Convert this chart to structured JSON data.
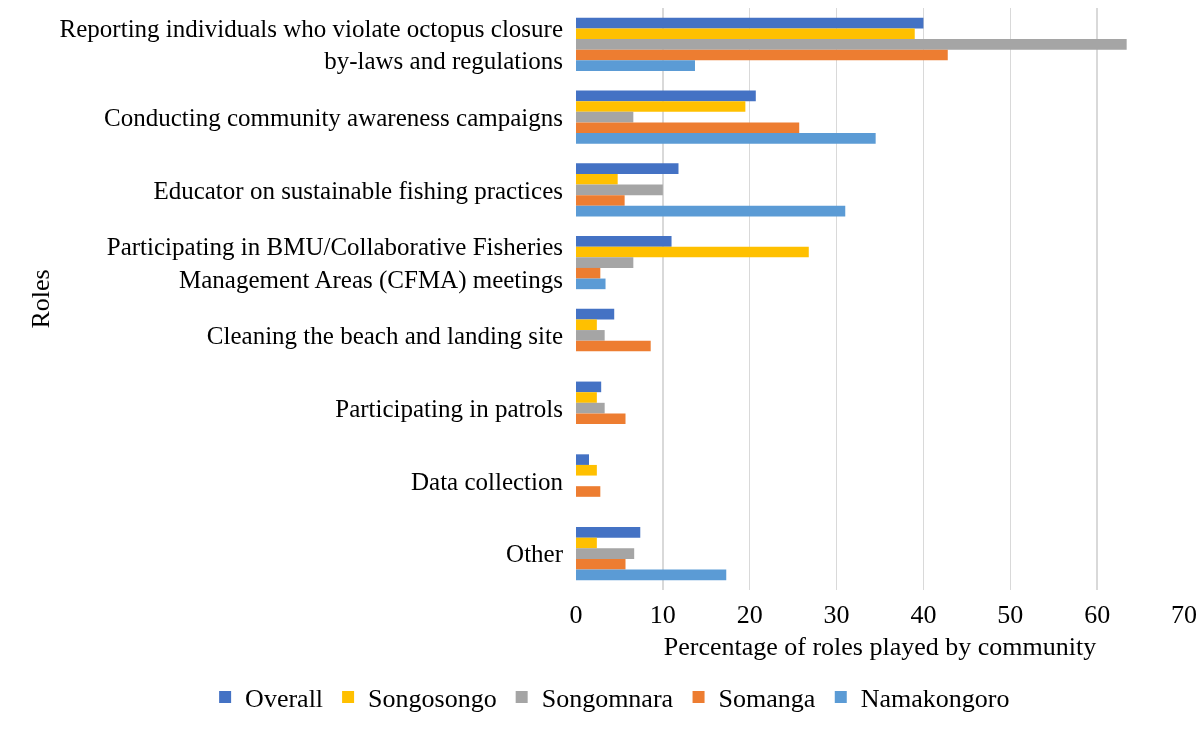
{
  "chart_data": {
    "type": "bar",
    "orientation": "horizontal",
    "categories": [
      "Reporting individuals who violate octopus closure by-laws and regulations",
      "Conducting community awareness campaigns",
      "Educator on sustainable fishing practices",
      "Participating in BMU/Collaborative Fisheries Management Areas (CFMA) meetings",
      "Cleaning the beach and landing site",
      "Participating in patrols",
      "Data collection",
      "Other"
    ],
    "series": [
      {
        "name": "Overall",
        "color": "#4472c4",
        "values": [
          40.0,
          20.7,
          11.8,
          11.0,
          4.4,
          2.9,
          1.5,
          7.4
        ]
      },
      {
        "name": "Songosongo",
        "color": "#ffc000",
        "values": [
          39.0,
          19.5,
          4.8,
          26.8,
          2.4,
          2.4,
          2.4,
          2.4
        ]
      },
      {
        "name": "Songomnara",
        "color": "#a5a5a5",
        "values": [
          63.4,
          6.6,
          10.0,
          6.6,
          3.3,
          3.3,
          null,
          6.7
        ]
      },
      {
        "name": "Somanga",
        "color": "#ed7d31",
        "values": [
          42.8,
          25.7,
          5.6,
          2.8,
          8.6,
          5.7,
          2.8,
          5.7
        ]
      },
      {
        "name": "Namakongoro",
        "color": "#5b9bd5",
        "values": [
          13.7,
          34.5,
          31.0,
          3.4,
          null,
          null,
          null,
          17.3
        ]
      }
    ],
    "xlabel": "Percentage of roles played by community",
    "ylabel": "Roles",
    "xlim": [
      0,
      70
    ],
    "xticks": [
      0,
      10,
      20,
      30,
      40,
      50,
      60,
      70
    ],
    "grid": "x",
    "legend": "bottom"
  }
}
